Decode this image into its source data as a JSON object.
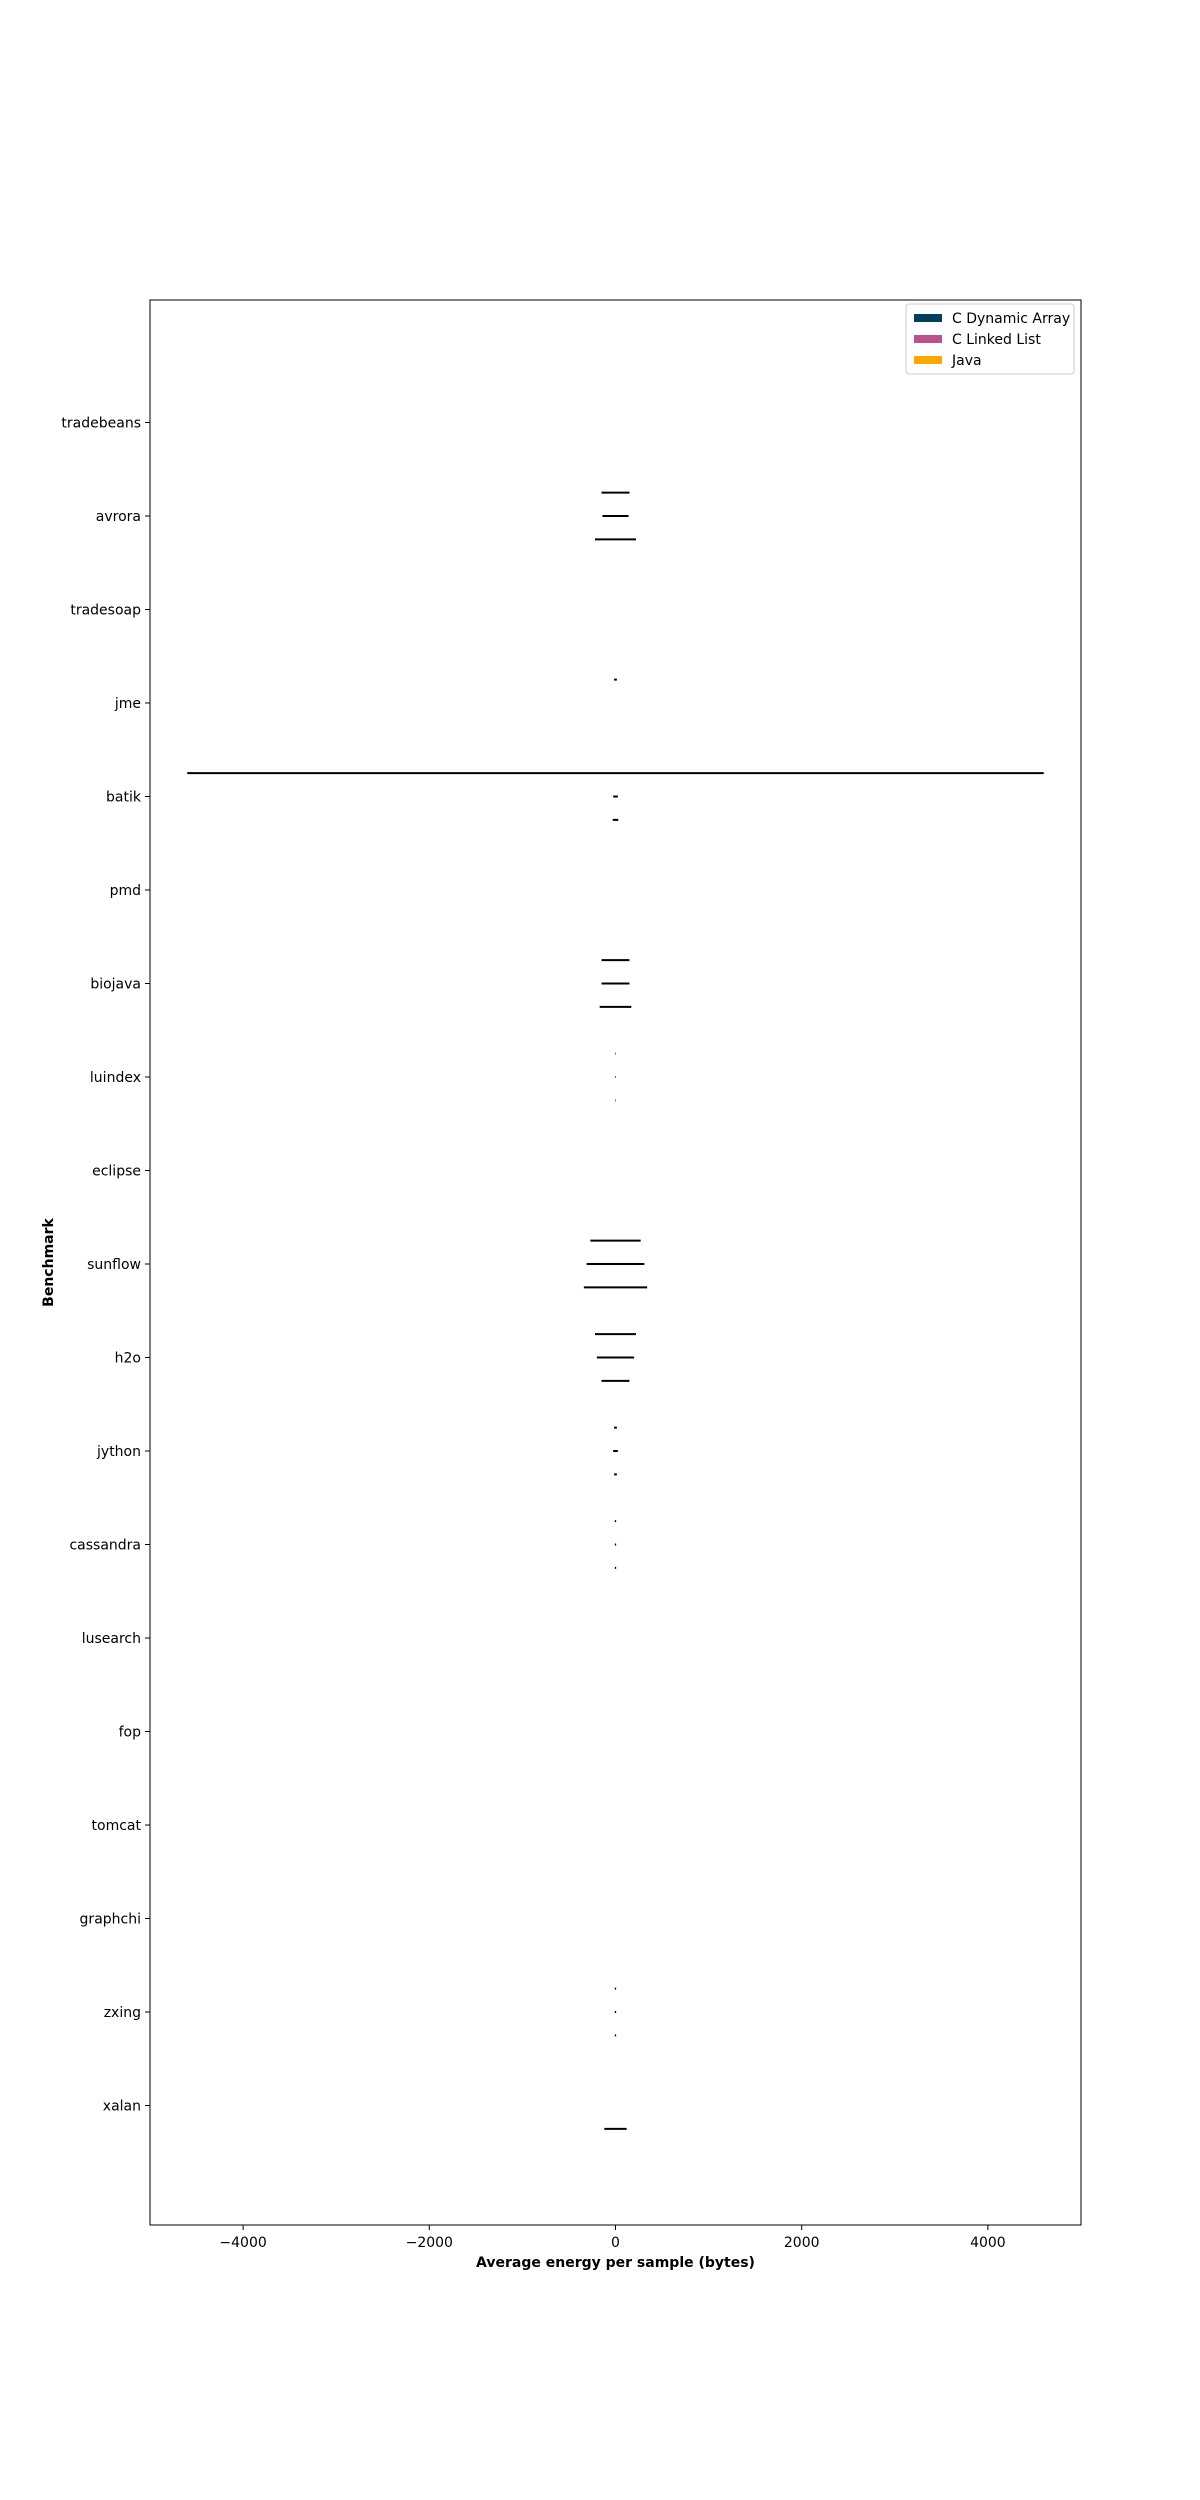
{
  "chart_data": {
    "type": "errorbar",
    "title": "",
    "xlabel": "Average energy per sample (bytes)",
    "ylabel": "Benchmark",
    "xlim": [
      -5000,
      5000
    ],
    "xticks": [
      -4000,
      -2000,
      0,
      2000,
      4000
    ],
    "xtick_labels": [
      "−4000",
      "−2000",
      "0",
      "2000",
      "4000"
    ],
    "grid": false,
    "legend_position": "top-right",
    "categories": [
      "tradebeans",
      "avrora",
      "tradesoap",
      "jme",
      "batik",
      "pmd",
      "biojava",
      "luindex",
      "eclipse",
      "sunflow",
      "h2o",
      "jython",
      "cassandra",
      "lusearch",
      "fop",
      "tomcat",
      "graphchi",
      "zxing",
      "xalan"
    ],
    "series": [
      {
        "name": "C Dynamic Array",
        "color": "#003f5c",
        "offset": -0.25,
        "errors": [
          null,
          [
            -150,
            150
          ],
          null,
          [
            -15,
            15
          ],
          [
            -4600,
            4600
          ],
          null,
          [
            -150,
            150
          ],
          [
            -3,
            3
          ],
          null,
          [
            -270,
            270
          ],
          [
            -220,
            220
          ],
          [
            -15,
            15
          ],
          [
            -7,
            7
          ],
          null,
          null,
          null,
          null,
          [
            -7,
            7
          ],
          null
        ]
      },
      {
        "name": "C Linked List",
        "color": "#bc5090",
        "offset": 0,
        "errors": [
          null,
          [
            -140,
            140
          ],
          null,
          null,
          [
            -25,
            25
          ],
          null,
          [
            -150,
            150
          ],
          [
            -3,
            3
          ],
          null,
          [
            -310,
            310
          ],
          [
            -200,
            200
          ],
          [
            -25,
            25
          ],
          [
            -7,
            7
          ],
          null,
          null,
          null,
          null,
          [
            -7,
            7
          ],
          null
        ]
      },
      {
        "name": "Java",
        "color": "#ffa600",
        "offset": 0.25,
        "errors": [
          null,
          [
            -220,
            220
          ],
          null,
          null,
          [
            -30,
            30
          ],
          null,
          [
            -170,
            170
          ],
          [
            -3,
            3
          ],
          null,
          [
            -340,
            340
          ],
          [
            -150,
            150
          ],
          [
            -15,
            15
          ],
          [
            -7,
            7
          ],
          null,
          null,
          null,
          null,
          [
            -7,
            7
          ],
          [
            -120,
            120
          ]
        ]
      }
    ]
  }
}
